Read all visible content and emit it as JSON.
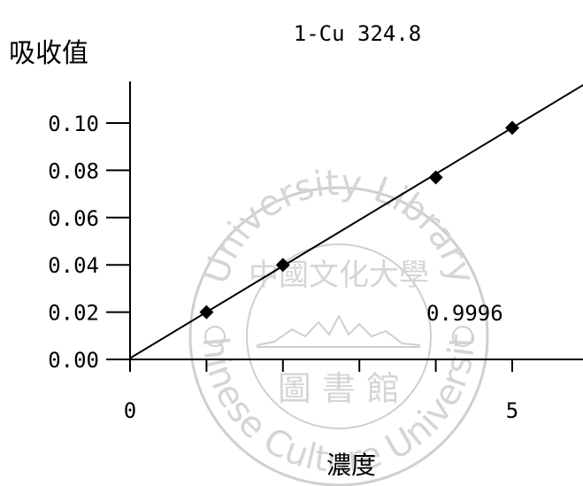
{
  "chart_data": {
    "type": "scatter",
    "title": "1-Cu 324.8",
    "ylabel": "吸收值",
    "xlabel": "濃度",
    "xlim": [
      0,
      6
    ],
    "ylim": [
      0,
      0.116
    ],
    "x_ticks": [
      0,
      1,
      2,
      3,
      4,
      5,
      6
    ],
    "x_tick_labels": [
      "0",
      "",
      "",
      "",
      "",
      "5",
      ""
    ],
    "y_ticks": [
      0.0,
      0.02,
      0.04,
      0.06,
      0.08,
      0.1
    ],
    "y_tick_labels": [
      "0.00",
      "0.02",
      "0.04",
      "0.06",
      "0.08",
      "0.10"
    ],
    "series": [
      {
        "points": [
          [
            1,
            0.02
          ],
          [
            2,
            0.04
          ],
          [
            4,
            0.077
          ],
          [
            5,
            0.098
          ]
        ]
      }
    ],
    "fit_line": {
      "intercept": 0.0005,
      "slope": 0.0195
    },
    "annotation": "0.9996",
    "grid": false,
    "legend": "none"
  },
  "watermark": {
    "top": "University Library",
    "bottom": "Chinese Culture University",
    "center": "中國文化大學",
    "inner": "圖 書 館"
  }
}
